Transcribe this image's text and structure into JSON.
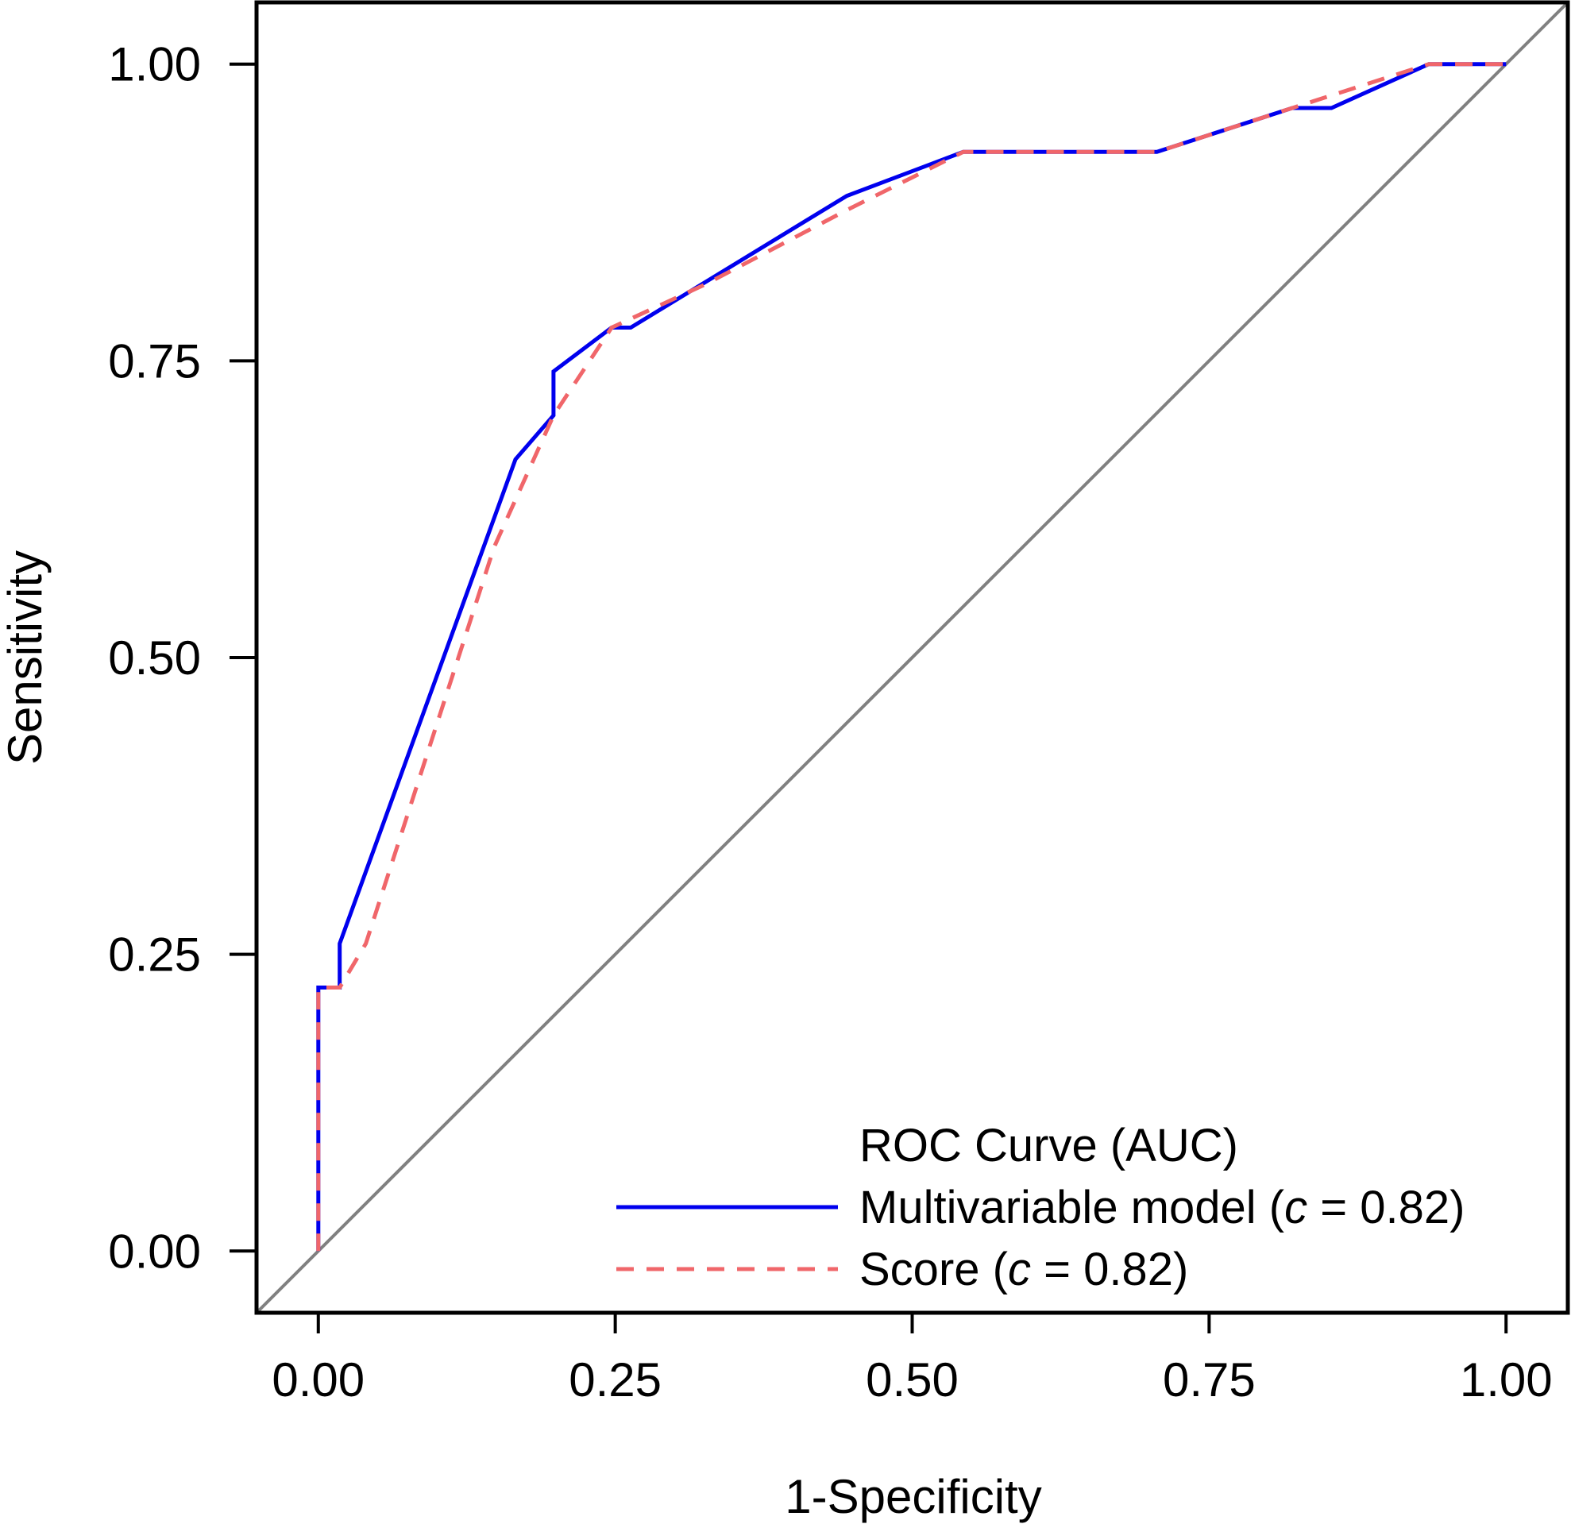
{
  "chart_data": {
    "type": "line",
    "title": "",
    "xlabel": "1-Specificity",
    "ylabel": "Sensitivity",
    "xlim": [
      -0.052,
      1.052
    ],
    "ylim": [
      -0.052,
      1.052
    ],
    "x_ticks": [
      "0.00",
      "0.25",
      "0.50",
      "0.75",
      "1.00"
    ],
    "y_ticks": [
      "0.00",
      "0.25",
      "0.50",
      "0.75",
      "1.00"
    ],
    "grid": false,
    "legend": {
      "title": "ROC Curve (AUC)",
      "placement": "bottom-right"
    },
    "series": [
      {
        "name": "Multivariable model",
        "c_label": "c",
        "c_value": "0.82",
        "color": "#0000ee",
        "style": "solid",
        "x": [
          0,
          0,
          0.018,
          0.018,
          0.166,
          0.198,
          0.198,
          0.247,
          0.263,
          0.445,
          0.543,
          0.706,
          0.82,
          0.853,
          0.935,
          1.0
        ],
        "y": [
          0,
          0.222,
          0.222,
          0.259,
          0.667,
          0.704,
          0.741,
          0.778,
          0.778,
          0.889,
          0.926,
          0.926,
          0.963,
          0.963,
          1.0,
          1.0
        ]
      },
      {
        "name": "Score",
        "c_label": "c",
        "c_value": "0.82",
        "color": "#f0666a",
        "style": "dashed",
        "x": [
          0,
          0,
          0.018,
          0.04,
          0.148,
          0.198,
          0.247,
          0.327,
          0.445,
          0.543,
          0.706,
          0.82,
          0.935,
          1.0
        ],
        "y": [
          0,
          0.222,
          0.222,
          0.259,
          0.593,
          0.704,
          0.778,
          0.815,
          0.877,
          0.926,
          0.926,
          0.963,
          1.0,
          1.0
        ]
      },
      {
        "name": "",
        "color": "#808080",
        "style": "solid",
        "x": [
          -0.052,
          1.052
        ],
        "y": [
          -0.052,
          1.052
        ]
      }
    ]
  }
}
